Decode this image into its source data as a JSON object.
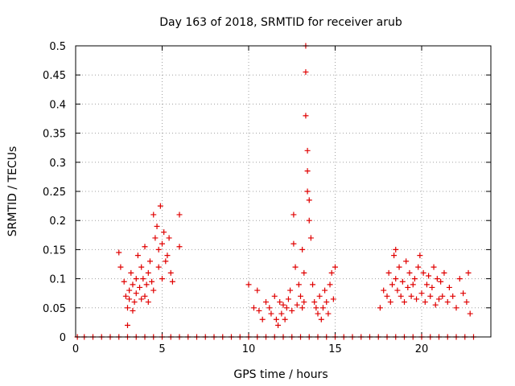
{
  "chart_data": {
    "type": "scatter",
    "title": "Day 163 of 2018, SRMTID for receiver arub",
    "xlabel": "GPS time / hours",
    "ylabel": "SRMTID / TECUs",
    "xlim": [
      0,
      24
    ],
    "ylim": [
      0,
      0.5
    ],
    "x_ticks": [
      0,
      5,
      10,
      15,
      20
    ],
    "y_ticks": [
      0,
      0.05,
      0.1,
      0.15,
      0.2,
      0.25,
      0.3,
      0.35,
      0.4,
      0.45,
      0.5
    ],
    "x_tick_labels": [
      "0",
      "5",
      "10",
      "15",
      "20"
    ],
    "y_tick_labels": [
      "0",
      "0.05",
      "0.1",
      "0.15",
      "0.2",
      "0.25",
      "0.3",
      "0.35",
      "0.4",
      "0.45",
      "0.5"
    ],
    "grid": true,
    "marker": "+",
    "colors": {
      "series": "#e00000",
      "grid": "#a0a0a0",
      "axis": "#000000"
    },
    "series": [
      {
        "name": "SRMTID",
        "x": [
          0.1,
          0.5,
          1.0,
          1.5,
          2.0,
          2.5,
          3.0,
          3.5,
          4.0,
          4.5,
          5.0,
          5.5,
          6.0,
          6.5,
          7.0,
          7.5,
          8.0,
          8.5,
          9.0,
          9.5,
          10.0,
          10.5,
          11.0,
          11.5,
          12.0,
          12.5,
          13.0,
          13.5,
          14.0,
          14.5,
          15.0,
          15.5,
          16.0,
          16.5,
          17.0,
          17.5,
          18.0,
          18.5,
          19.0,
          19.5,
          20.0,
          20.5,
          21.0,
          21.5,
          22.0,
          22.5,
          23.0,
          2.5,
          2.6,
          2.8,
          2.9,
          3.0,
          3.0,
          3.1,
          3.1,
          3.2,
          3.3,
          3.3,
          3.4,
          3.5,
          3.5,
          3.6,
          3.7,
          3.8,
          3.8,
          3.9,
          4.0,
          4.0,
          4.1,
          4.2,
          4.2,
          4.3,
          4.4,
          4.5,
          4.5,
          4.6,
          4.7,
          4.8,
          4.8,
          4.9,
          5.0,
          5.0,
          5.1,
          5.2,
          5.3,
          5.4,
          5.5,
          5.6,
          6.0,
          6.0,
          10.0,
          10.3,
          10.5,
          10.6,
          10.8,
          11.0,
          11.2,
          11.3,
          11.5,
          11.6,
          11.7,
          11.8,
          11.9,
          12.0,
          12.1,
          12.2,
          12.3,
          12.4,
          12.5,
          12.6,
          12.6,
          12.7,
          12.8,
          12.9,
          13.0,
          13.1,
          13.1,
          13.2,
          13.2,
          13.3,
          13.3,
          13.3,
          13.4,
          13.4,
          13.4,
          13.5,
          13.5,
          13.6,
          13.7,
          13.8,
          13.9,
          14.0,
          14.1,
          14.2,
          14.3,
          14.4,
          14.5,
          14.6,
          14.7,
          14.8,
          14.9,
          15.0,
          17.6,
          17.8,
          18.0,
          18.1,
          18.2,
          18.3,
          18.4,
          18.5,
          18.5,
          18.6,
          18.7,
          18.8,
          18.9,
          19.0,
          19.1,
          19.2,
          19.3,
          19.4,
          19.5,
          19.6,
          19.7,
          19.8,
          19.9,
          20.0,
          20.1,
          20.2,
          20.3,
          20.4,
          20.5,
          20.6,
          20.7,
          20.8,
          20.9,
          21.0,
          21.1,
          21.2,
          21.3,
          21.5,
          21.6,
          21.8,
          22.0,
          22.2,
          22.4,
          22.6,
          22.7,
          22.8
        ],
        "y": [
          0,
          0,
          0,
          0,
          0,
          0,
          0,
          0,
          0,
          0,
          0,
          0,
          0,
          0,
          0,
          0,
          0,
          0,
          0,
          0,
          0,
          0,
          0,
          0,
          0,
          0,
          0,
          0,
          0,
          0,
          0,
          0,
          0,
          0,
          0,
          0,
          0,
          0,
          0,
          0,
          0,
          0,
          0,
          0,
          0,
          0,
          0,
          0.145,
          0.12,
          0.095,
          0.07,
          0.05,
          0.02,
          0.08,
          0.065,
          0.11,
          0.045,
          0.09,
          0.06,
          0.1,
          0.075,
          0.14,
          0.085,
          0.12,
          0.065,
          0.1,
          0.07,
          0.155,
          0.09,
          0.11,
          0.06,
          0.13,
          0.095,
          0.21,
          0.08,
          0.17,
          0.19,
          0.15,
          0.12,
          0.225,
          0.16,
          0.1,
          0.18,
          0.13,
          0.14,
          0.17,
          0.11,
          0.095,
          0.21,
          0.155,
          0.09,
          0.05,
          0.08,
          0.045,
          0.03,
          0.06,
          0.05,
          0.04,
          0.07,
          0.03,
          0.02,
          0.06,
          0.04,
          0.055,
          0.03,
          0.05,
          0.065,
          0.08,
          0.045,
          0.21,
          0.16,
          0.12,
          0.055,
          0.09,
          0.07,
          0.15,
          0.05,
          0.11,
          0.06,
          0.5,
          0.455,
          0.38,
          0.32,
          0.285,
          0.25,
          0.235,
          0.2,
          0.17,
          0.09,
          0.06,
          0.05,
          0.04,
          0.07,
          0.03,
          0.05,
          0.08,
          0.06,
          0.04,
          0.09,
          0.11,
          0.065,
          0.12,
          0.05,
          0.08,
          0.07,
          0.11,
          0.06,
          0.09,
          0.14,
          0.15,
          0.1,
          0.08,
          0.12,
          0.07,
          0.095,
          0.06,
          0.13,
          0.085,
          0.11,
          0.07,
          0.09,
          0.1,
          0.065,
          0.12,
          0.14,
          0.075,
          0.11,
          0.06,
          0.09,
          0.105,
          0.07,
          0.085,
          0.12,
          0.055,
          0.1,
          0.065,
          0.095,
          0.07,
          0.11,
          0.06,
          0.085,
          0.07,
          0.05,
          0.1,
          0.075,
          0.06,
          0.11,
          0.04
        ]
      }
    ]
  }
}
